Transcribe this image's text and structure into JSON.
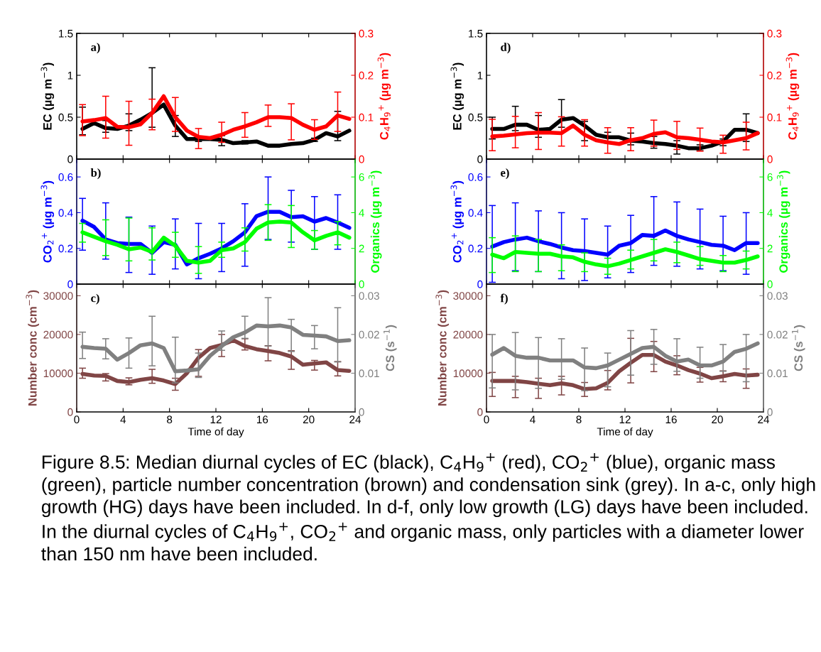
{
  "chart_data": [
    {
      "type": "line",
      "ylabel": "EC (µg m$^{−3}$)",
      "y2label": "C$_{4}$H$_{9}$$^{+}$ (µg m$^{−3}$)",
      "annotations": [
        "a)"
      ],
      "tick_labels": "y",
      "x": [
        0.5,
        1.5,
        2.5,
        3.5,
        4.5,
        5.5,
        6.5,
        7.5,
        8.5,
        9.5,
        10.5,
        11.5,
        12.5,
        13.5,
        14.5,
        15.5,
        16.5,
        17.5,
        18.5,
        19.5,
        20.5,
        21.5,
        22.5,
        23.5
      ],
      "xlim": [
        0,
        24
      ],
      "xticks": [
        0,
        4,
        8,
        12,
        16,
        20,
        24
      ],
      "ylim": [
        0,
        1.5
      ],
      "yticks": [
        0,
        0.5,
        1,
        1.5
      ],
      "y2lim": [
        0,
        0.3
      ],
      "y2ticks": [
        0,
        0.1,
        0.2,
        0.3
      ],
      "line_style": "solid",
      "series": [
        {
          "axis": "y",
          "color": "#000000",
          "values": [
            0.36,
            0.43,
            0.37,
            0.36,
            0.4,
            0.47,
            0.55,
            0.65,
            0.4,
            0.24,
            0.24,
            0.24,
            0.23,
            0.19,
            0.2,
            0.21,
            0.16,
            0.16,
            0.18,
            0.19,
            0.23,
            0.31,
            0.27,
            0.34
          ],
          "errors": [
            [
              0.29,
              0.62
            ],
            null,
            [
              0.32,
              0.46
            ],
            null,
            [
              0.34,
              0.54
            ],
            null,
            [
              0.38,
              1.09
            ],
            null,
            [
              0.27,
              0.52
            ],
            null,
            [
              0.21,
              0.27
            ],
            null,
            [
              0.16,
              0.28
            ],
            null,
            [
              0.18,
              0.22
            ],
            null,
            null,
            null,
            null,
            null,
            [
              0.21,
              0.25
            ],
            null,
            [
              0.22,
              0.57
            ],
            null
          ]
        },
        {
          "axis": "y2",
          "color": "#ff0000",
          "values": [
            0.09,
            0.093,
            0.098,
            0.077,
            0.076,
            0.083,
            0.11,
            0.15,
            0.1,
            0.068,
            0.053,
            0.05,
            0.058,
            0.07,
            0.078,
            0.088,
            0.1,
            0.1,
            0.098,
            0.082,
            0.07,
            0.078,
            0.104,
            0.096
          ],
          "errors": [
            [
              0.056,
              0.13
            ],
            null,
            [
              0.05,
              0.15
            ],
            null,
            [
              0.033,
              0.138
            ],
            null,
            [
              0.07,
              0.143
            ],
            null,
            [
              0.066,
              0.147
            ],
            null,
            [
              0.025,
              0.073
            ],
            null,
            [
              0.04,
              0.088
            ],
            null,
            [
              0.052,
              0.111
            ],
            null,
            [
              0.078,
              0.129
            ],
            null,
            [
              0.046,
              0.132
            ],
            null,
            [
              0.047,
              0.094
            ],
            null,
            [
              0.066,
              0.16
            ],
            null
          ]
        }
      ]
    },
    {
      "type": "line",
      "ylabel": "CO$_{2}$$^{+}$ (µg m$^{−3}$)",
      "y2label": "Organics (µg m$^{−3}$)",
      "annotations": [
        "b)"
      ],
      "tick_labels": "y",
      "x": [
        0.5,
        1.5,
        2.5,
        3.5,
        4.5,
        5.5,
        6.5,
        7.5,
        8.5,
        9.5,
        10.5,
        11.5,
        12.5,
        13.5,
        14.5,
        15.5,
        16.5,
        17.5,
        18.5,
        19.5,
        20.5,
        21.5,
        22.5,
        23.5
      ],
      "xlim": [
        0,
        24
      ],
      "xticks": [
        0,
        4,
        8,
        12,
        16,
        20,
        24
      ],
      "ylim": [
        0,
        0.7
      ],
      "yticks": [
        0,
        0.2,
        0.4,
        0.6
      ],
      "y2lim": [
        0,
        7
      ],
      "y2ticks": [
        0,
        2,
        4,
        6
      ],
      "line_style": "solid",
      "series": [
        {
          "axis": "y",
          "color": "#0000ff",
          "values": [
            0.355,
            0.32,
            0.25,
            0.23,
            0.225,
            0.225,
            0.175,
            0.235,
            0.22,
            0.11,
            0.145,
            0.17,
            0.2,
            0.24,
            0.29,
            0.38,
            0.405,
            0.405,
            0.375,
            0.38,
            0.35,
            0.37,
            0.345,
            0.315
          ],
          "errors": [
            [
              0.19,
              0.48
            ],
            null,
            [
              0.14,
              0.455
            ],
            null,
            [
              0.065,
              0.375
            ],
            null,
            [
              0.055,
              0.325
            ],
            null,
            [
              0.085,
              0.365
            ],
            null,
            [
              0.03,
              0.34
            ],
            null,
            [
              0.07,
              0.34
            ],
            null,
            [
              0.1,
              0.45
            ],
            null,
            [
              0.25,
              0.6
            ],
            null,
            [
              0.235,
              0.525
            ],
            null,
            [
              0.195,
              0.49
            ],
            null,
            [
              0.195,
              0.5
            ],
            null
          ]
        },
        {
          "axis": "y2",
          "color": "#00ff00",
          "values": [
            2.9,
            2.65,
            2.4,
            2.2,
            1.95,
            2.05,
            1.8,
            2.6,
            2.15,
            1.3,
            1.2,
            1.3,
            1.9,
            2.0,
            2.35,
            3.1,
            3.45,
            3.5,
            3.45,
            2.9,
            2.45,
            2.7,
            2.9,
            2.6
          ],
          "errors": [
            [
              2.35,
              3.4
            ],
            null,
            [
              1.6,
              3.6
            ],
            null,
            [
              1.3,
              3.7
            ],
            null,
            [
              1.35,
              3.15
            ],
            null,
            [
              1.5,
              2.9
            ],
            null,
            [
              0.6,
              2.1
            ],
            null,
            [
              1.5,
              2.35
            ],
            null,
            [
              1.85,
              3.15
            ],
            null,
            [
              2.45,
              4.45
            ],
            null,
            [
              2.05,
              4.4
            ],
            null,
            [
              1.95,
              3.0
            ],
            null,
            [
              2.2,
              3.5
            ],
            null
          ]
        }
      ]
    },
    {
      "type": "line",
      "ylabel": "Number conc (cm$^{−3}$)",
      "y2label": "CS (s$^{−1}$)",
      "xlabel": "Time of day",
      "annotations": [
        "c)"
      ],
      "x": [
        0.5,
        1.5,
        2.5,
        3.5,
        4.5,
        5.5,
        6.5,
        7.5,
        8.5,
        9.5,
        10.5,
        11.5,
        12.5,
        13.5,
        14.5,
        15.5,
        16.5,
        17.5,
        18.5,
        19.5,
        20.5,
        21.5,
        22.5,
        23.5
      ],
      "xlim": [
        0,
        24
      ],
      "xticks": [
        0,
        4,
        8,
        12,
        16,
        20,
        24
      ],
      "ylim": [
        0,
        33000
      ],
      "yticks": [
        0,
        10000,
        20000,
        30000
      ],
      "y2lim": [
        0,
        0.033
      ],
      "y2ticks": [
        0,
        0.01,
        0.02,
        0.03
      ],
      "line_style": "solid",
      "series": [
        {
          "axis": "y",
          "color": "#804545",
          "values": [
            9800,
            9400,
            9300,
            8000,
            7700,
            8300,
            8700,
            8100,
            7200,
            10000,
            14000,
            16500,
            17300,
            18500,
            17000,
            16200,
            15700,
            15200,
            14300,
            12200,
            12500,
            12800,
            10800,
            10600
          ],
          "errors": [
            [
              8700,
              11300
            ],
            null,
            [
              8000,
              9900
            ],
            null,
            [
              7000,
              8800
            ],
            null,
            [
              7400,
              11000
            ],
            null,
            [
              5600,
              8700
            ],
            null,
            [
              9200,
              16100
            ],
            null,
            [
              14300,
              20000
            ],
            null,
            [
              16000,
              18900
            ],
            null,
            [
              13200,
              17100
            ],
            null,
            [
              11000,
              15800
            ],
            null,
            [
              10800,
              13300
            ],
            null,
            [
              9300,
              13000
            ],
            null
          ]
        },
        {
          "axis": "y2",
          "color": "#808080",
          "values": [
            0.0168,
            0.0165,
            0.0163,
            0.0135,
            0.0152,
            0.0172,
            0.0177,
            0.0165,
            0.0105,
            0.0107,
            0.011,
            0.0145,
            0.017,
            0.0193,
            0.0205,
            0.0223,
            0.0221,
            0.0223,
            0.0218,
            0.0199,
            0.0197,
            0.0195,
            0.0183,
            0.0185
          ],
          "errors": [
            [
              0.0138,
              0.0206
            ],
            null,
            [
              0.0137,
              0.0189
            ],
            null,
            [
              0.0113,
              0.0191
            ],
            null,
            [
              0.0119,
              0.0247
            ],
            null,
            [
              0.0075,
              0.0193
            ],
            null,
            [
              0.0089,
              0.0152
            ],
            null,
            [
              0.0159,
              0.0209
            ],
            null,
            [
              0.019,
              0.0247
            ],
            null,
            [
              0.017,
              0.0295
            ],
            null,
            [
              0.0156,
              0.0239
            ],
            null,
            [
              0.0163,
              0.0223
            ],
            null,
            [
              0.0129,
              0.0269
            ],
            null
          ]
        }
      ]
    },
    {
      "type": "line",
      "ylabel": "EC (µg m$^{−3}$)",
      "y2label": "C$_{4}$H$_{9}$$^{+}$ (µg m$^{−3}$)",
      "annotations": [
        "d)"
      ],
      "tick_labels": "y",
      "x": [
        0.5,
        1.5,
        2.5,
        3.5,
        4.5,
        5.5,
        6.5,
        7.5,
        8.5,
        9.5,
        10.5,
        11.5,
        12.5,
        13.5,
        14.5,
        15.5,
        16.5,
        17.5,
        18.5,
        19.5,
        20.5,
        21.5,
        22.5,
        23.5
      ],
      "xlim": [
        0,
        24
      ],
      "xticks": [
        0,
        4,
        8,
        12,
        16,
        20,
        24
      ],
      "ylim": [
        0,
        1.5
      ],
      "yticks": [
        0,
        0.5,
        1,
        1.5
      ],
      "y2lim": [
        0,
        0.3
      ],
      "y2ticks": [
        0,
        0.1,
        0.2,
        0.3
      ],
      "line_style": "solid",
      "series": [
        {
          "axis": "y",
          "color": "#000000",
          "values": [
            0.36,
            0.36,
            0.41,
            0.41,
            0.35,
            0.36,
            0.47,
            0.49,
            0.4,
            0.29,
            0.26,
            0.26,
            0.22,
            0.21,
            0.19,
            0.18,
            0.16,
            0.13,
            0.13,
            0.16,
            0.21,
            0.35,
            0.35,
            0.31
          ],
          "errors": [
            [
              0.24,
              0.5
            ],
            null,
            [
              0.34,
              0.63
            ],
            null,
            [
              0.26,
              0.52
            ],
            null,
            [
              0.38,
              0.71
            ],
            null,
            [
              0.22,
              0.45
            ],
            null,
            [
              0.19,
              0.32
            ],
            null,
            [
              0.17,
              0.31
            ],
            null,
            [
              0.13,
              0.27
            ],
            null,
            [
              0.06,
              0.22
            ],
            null,
            [
              0.1,
              0.17
            ],
            null,
            [
              0.16,
              0.24
            ],
            null,
            [
              0.21,
              0.54
            ],
            null
          ]
        },
        {
          "axis": "y2",
          "color": "#ff0000",
          "values": [
            0.054,
            0.056,
            0.059,
            0.062,
            0.063,
            0.063,
            0.062,
            0.08,
            0.058,
            0.045,
            0.04,
            0.036,
            0.045,
            0.05,
            0.06,
            0.064,
            0.052,
            0.05,
            0.046,
            0.042,
            0.04,
            0.045,
            0.05,
            0.062
          ],
          "errors": [
            [
              0.02,
              0.095
            ],
            null,
            [
              0.027,
              0.102
            ],
            null,
            [
              0.023,
              0.111
            ],
            null,
            [
              0.031,
              0.101
            ],
            null,
            [
              0.031,
              0.094
            ],
            null,
            [
              0.014,
              0.075
            ],
            null,
            [
              0.02,
              0.075
            ],
            null,
            [
              0.031,
              0.093
            ],
            null,
            [
              0.023,
              0.09
            ],
            null,
            [
              0.019,
              0.074
            ],
            null,
            [
              0.014,
              0.057
            ],
            null,
            [
              0.022,
              0.088
            ],
            null
          ]
        }
      ]
    },
    {
      "type": "line",
      "ylabel": "CO$_{2}$$^{+}$ (µg m$^{−3}$)",
      "y2label": "Organics (µg m$^{−3}$)",
      "annotations": [
        "e)"
      ],
      "tick_labels": "y",
      "x": [
        0.5,
        1.5,
        2.5,
        3.5,
        4.5,
        5.5,
        6.5,
        7.5,
        8.5,
        9.5,
        10.5,
        11.5,
        12.5,
        13.5,
        14.5,
        15.5,
        16.5,
        17.5,
        18.5,
        19.5,
        20.5,
        21.5,
        22.5,
        23.5
      ],
      "xlim": [
        0,
        24
      ],
      "xticks": [
        0,
        4,
        8,
        12,
        16,
        20,
        24
      ],
      "ylim": [
        0,
        0.7
      ],
      "yticks": [
        0,
        0.2,
        0.4,
        0.6
      ],
      "y2lim": [
        0,
        7
      ],
      "y2ticks": [
        0,
        2,
        4,
        6
      ],
      "line_style": "solid",
      "series": [
        {
          "axis": "y",
          "color": "#0000ff",
          "values": [
            0.21,
            0.235,
            0.25,
            0.26,
            0.24,
            0.225,
            0.205,
            0.19,
            0.185,
            0.175,
            0.165,
            0.215,
            0.23,
            0.275,
            0.27,
            0.3,
            0.27,
            0.25,
            0.235,
            0.22,
            0.215,
            0.19,
            0.23,
            0.23
          ],
          "errors": [
            [
              0.01,
              0.44
            ],
            null,
            [
              0.075,
              0.455
            ],
            null,
            [
              0.07,
              0.41
            ],
            null,
            [
              0.03,
              0.4
            ],
            null,
            [
              0.02,
              0.365
            ],
            null,
            [
              0.035,
              0.325
            ],
            null,
            [
              0.065,
              0.385
            ],
            null,
            [
              0.105,
              0.49
            ],
            null,
            [
              0.1,
              0.46
            ],
            null,
            [
              0.085,
              0.42
            ],
            null,
            [
              0.075,
              0.38
            ],
            null,
            [
              0.055,
              0.4
            ],
            null
          ]
        },
        {
          "axis": "y2",
          "color": "#00ff00",
          "values": [
            1.65,
            1.45,
            1.8,
            1.75,
            1.7,
            1.7,
            1.55,
            1.5,
            1.25,
            1.1,
            1.0,
            1.15,
            1.35,
            1.55,
            1.75,
            1.95,
            1.8,
            1.6,
            1.4,
            1.3,
            1.2,
            1.2,
            1.35,
            1.55
          ],
          "errors": [
            [
              0.65,
              2.6
            ],
            null,
            [
              0.7,
              2.7
            ],
            null,
            [
              0.7,
              2.5
            ],
            null,
            [
              0.75,
              2.2
            ],
            null,
            [
              0.7,
              1.75
            ],
            null,
            [
              0.55,
              1.45
            ],
            null,
            [
              0.85,
              1.9
            ],
            null,
            [
              1.3,
              2.5
            ],
            null,
            [
              1.2,
              2.35
            ],
            null,
            [
              1.05,
              2.1
            ],
            null,
            [
              0.7,
              1.6
            ],
            null,
            [
              0.85,
              1.85
            ],
            null
          ]
        }
      ]
    },
    {
      "type": "line",
      "ylabel": "Number conc (cm$^{−3}$)",
      "y2label": "CS (s$^{−1}$)",
      "xlabel": "Time of day",
      "annotations": [
        "f)",
        "Figure 8.5: Median diurnal cycles of EC (black), C$_{4}$H$_{9}$$^{+}$ (red), CO$_{2}$$^{+}$ (blue), organic mass (green), particle number concentration (brown) and condensation sink (grey). In a-c, only high growth (HG) days have been included. In d-f, only low growth (LG) days have been included. In the diurnal cycles of C$_{4}$H$_{9}$$^{+}$, CO$_{2}$$^{+}$ and organic mass, only particles with a diameter lower than 150 nm have been included."
      ],
      "x": [
        0.5,
        1.5,
        2.5,
        3.5,
        4.5,
        5.5,
        6.5,
        7.5,
        8.5,
        9.5,
        10.5,
        11.5,
        12.5,
        13.5,
        14.5,
        15.5,
        16.5,
        17.5,
        18.5,
        19.5,
        20.5,
        21.5,
        22.5,
        23.5
      ],
      "xlim": [
        0,
        24
      ],
      "xticks": [
        0,
        4,
        8,
        12,
        16,
        20,
        24
      ],
      "ylim": [
        0,
        33000
      ],
      "yticks": [
        0,
        10000,
        20000,
        30000
      ],
      "y2lim": [
        0,
        0.033
      ],
      "y2ticks": [
        0,
        0.01,
        0.02,
        0.03
      ],
      "line_style": "solid",
      "series": [
        {
          "axis": "y",
          "color": "#804545",
          "values": [
            8000,
            8000,
            8000,
            7700,
            7300,
            6900,
            7400,
            6900,
            5900,
            6100,
            7500,
            10500,
            12700,
            14700,
            14700,
            13000,
            12000,
            10800,
            9900,
            8700,
            9200,
            9800,
            9400,
            9600
          ],
          "errors": [
            [
              4000,
              10200
            ],
            null,
            [
              3700,
              9200
            ],
            null,
            [
              3500,
              8700
            ],
            null,
            [
              4400,
              9200
            ],
            null,
            [
              4000,
              7600
            ],
            null,
            [
              5700,
              10700
            ],
            null,
            [
              7500,
              19000
            ],
            null,
            [
              10400,
              18200
            ],
            null,
            [
              9600,
              14500
            ],
            null,
            [
              7700,
              11500
            ],
            null,
            [
              7800,
              10600
            ],
            null,
            [
              6100,
              11100
            ],
            null
          ]
        },
        {
          "axis": "y2",
          "color": "#808080",
          "values": [
            0.0148,
            0.0165,
            0.0145,
            0.014,
            0.014,
            0.0133,
            0.0133,
            0.0133,
            0.0115,
            0.0113,
            0.012,
            0.0135,
            0.015,
            0.0165,
            0.0168,
            0.0145,
            0.013,
            0.0135,
            0.012,
            0.012,
            0.013,
            0.0155,
            0.0163,
            0.0177
          ],
          "errors": [
            [
              0.0062,
              0.02
            ],
            null,
            [
              0.0057,
              0.0205
            ],
            null,
            [
              0.0061,
              0.0192
            ],
            null,
            [
              0.0084,
              0.0189
            ],
            null,
            [
              0.0055,
              0.0165
            ],
            null,
            [
              0.0065,
              0.0152
            ],
            null,
            [
              0.0095,
              0.021
            ],
            null,
            [
              0.0123,
              0.0213
            ],
            null,
            [
              0.0105,
              0.0189
            ],
            null,
            [
              0.0087,
              0.0167
            ],
            null,
            [
              0.0105,
              0.0174
            ],
            null,
            [
              0.0078,
              0.02
            ],
            null
          ]
        }
      ]
    }
  ]
}
